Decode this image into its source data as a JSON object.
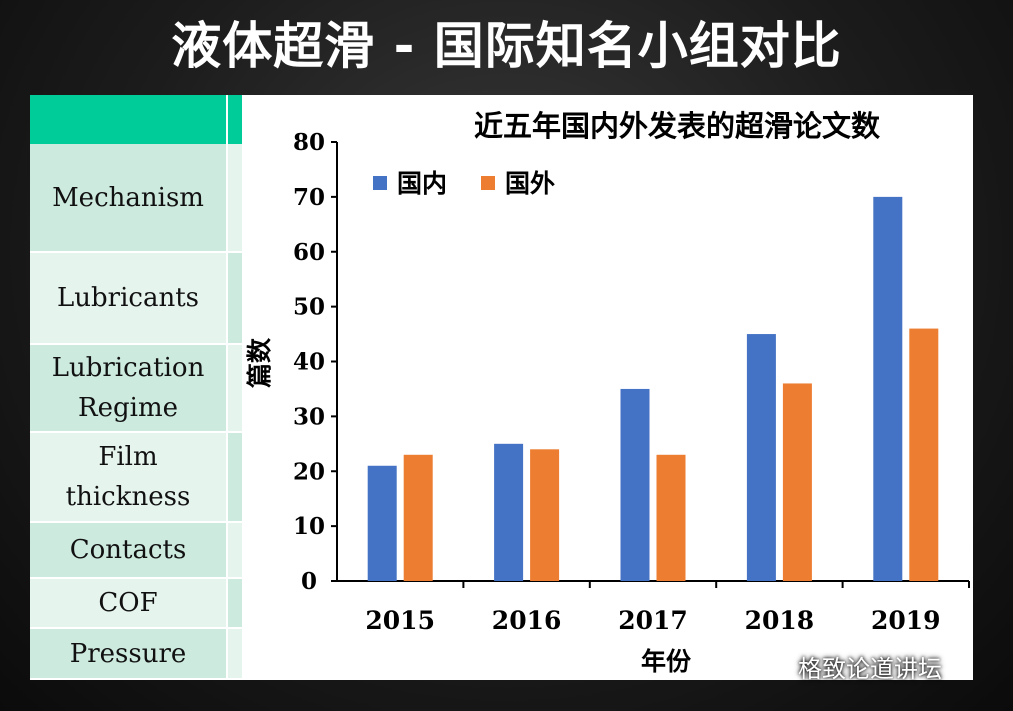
{
  "slide": {
    "title": "液体超滑 - 国际知名小组对比"
  },
  "parameters": {
    "rows": [
      "Mechanism",
      "Lubricants",
      "Lubrication\nRegime",
      "Film\nthickness",
      "Contacts",
      "COF",
      "Pressure"
    ]
  },
  "watermark": {
    "text": "格致论道讲坛",
    "icon": "wechat-icon"
  },
  "colors": {
    "header": "#00cc99",
    "domestic": "#4472c4",
    "foreign": "#ed7d31"
  },
  "chart_data": {
    "type": "bar",
    "title": "近五年国内外发表的超滑论文数",
    "xlabel": "年份",
    "ylabel": "篇数",
    "categories": [
      "2015",
      "2016",
      "2017",
      "2018",
      "2019"
    ],
    "series": [
      {
        "name": "国内",
        "color": "#4472c4",
        "values": [
          21,
          25,
          35,
          45,
          70
        ]
      },
      {
        "name": "国外",
        "color": "#ed7d31",
        "values": [
          23,
          24,
          23,
          36,
          46
        ]
      }
    ],
    "ylim": [
      0,
      80
    ],
    "yticks": [
      0,
      10,
      20,
      30,
      40,
      50,
      60,
      70,
      80
    ],
    "legend": "top-left",
    "grid": false
  }
}
